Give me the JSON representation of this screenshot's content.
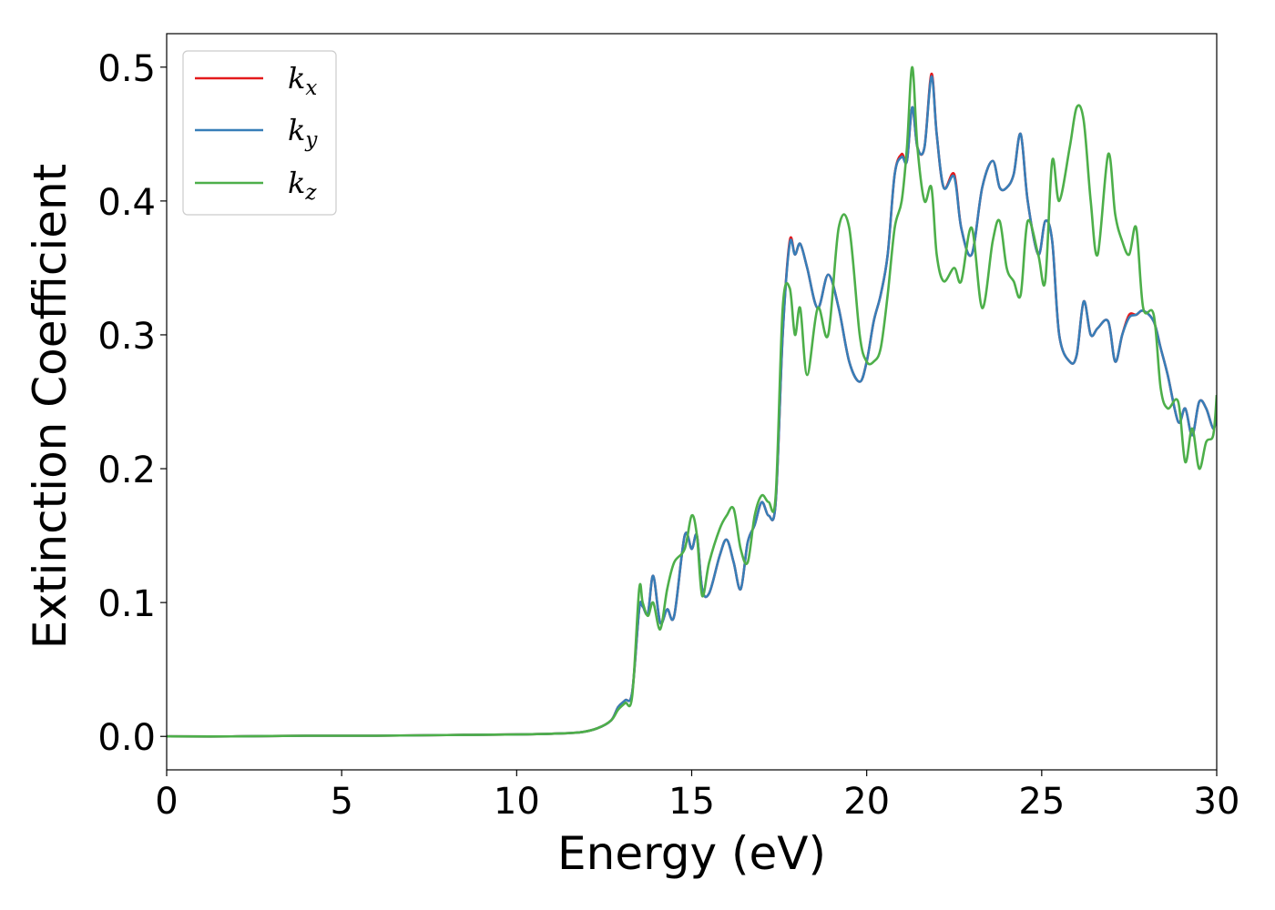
{
  "chart_data": {
    "type": "line",
    "xlabel": "Energy (eV)",
    "ylabel": "Extinction Coefficient",
    "xlim": [
      0,
      30
    ],
    "ylim": [
      -0.025,
      0.525
    ],
    "xticks": [
      0,
      5,
      10,
      15,
      20,
      25,
      30
    ],
    "xtick_labels": [
      "0",
      "5",
      "10",
      "15",
      "20",
      "25",
      "30"
    ],
    "yticks": [
      0.0,
      0.1,
      0.2,
      0.3,
      0.4,
      0.5
    ],
    "ytick_labels": [
      "0.0",
      "0.1",
      "0.2",
      "0.3",
      "0.4",
      "0.5"
    ],
    "grid": false,
    "legend_position": "top-left",
    "series": [
      {
        "name": "k_x",
        "label_base": "k",
        "label_sub": "x",
        "color": "#e41a1c",
        "x": [
          0,
          2,
          4,
          6,
          8,
          10,
          11,
          11.8,
          12.3,
          12.7,
          12.9,
          13.1,
          13.3,
          13.5,
          13.6,
          13.75,
          13.9,
          14.1,
          14.3,
          14.5,
          14.8,
          15.0,
          15.15,
          15.3,
          15.5,
          15.8,
          16.0,
          16.2,
          16.4,
          16.6,
          16.8,
          17.0,
          17.2,
          17.4,
          17.6,
          17.8,
          17.95,
          18.1,
          18.3,
          18.6,
          18.9,
          19.2,
          19.5,
          19.8,
          20.0,
          20.2,
          20.4,
          20.6,
          20.8,
          21.0,
          21.15,
          21.3,
          21.45,
          21.65,
          21.85,
          22.0,
          22.2,
          22.5,
          22.7,
          23.0,
          23.3,
          23.6,
          23.8,
          24.0,
          24.2,
          24.4,
          24.6,
          24.9,
          25.1,
          25.3,
          25.5,
          25.8,
          26.0,
          26.2,
          26.4,
          26.6,
          26.9,
          27.1,
          27.3,
          27.5,
          27.7,
          27.9,
          28.2,
          28.4,
          28.6,
          28.9,
          29.1,
          29.3,
          29.5,
          29.7,
          29.9,
          30
        ],
        "y": [
          0.0,
          0.0,
          0.0005,
          0.0005,
          0.001,
          0.0015,
          0.002,
          0.003,
          0.006,
          0.012,
          0.022,
          0.027,
          0.033,
          0.095,
          0.097,
          0.092,
          0.12,
          0.085,
          0.095,
          0.09,
          0.15,
          0.14,
          0.15,
          0.11,
          0.107,
          0.135,
          0.147,
          0.13,
          0.11,
          0.145,
          0.158,
          0.175,
          0.165,
          0.175,
          0.3,
          0.37,
          0.36,
          0.368,
          0.35,
          0.32,
          0.345,
          0.32,
          0.28,
          0.265,
          0.28,
          0.31,
          0.33,
          0.36,
          0.42,
          0.435,
          0.43,
          0.47,
          0.44,
          0.44,
          0.495,
          0.45,
          0.41,
          0.42,
          0.38,
          0.36,
          0.41,
          0.43,
          0.41,
          0.41,
          0.42,
          0.45,
          0.4,
          0.36,
          0.385,
          0.37,
          0.3,
          0.28,
          0.285,
          0.325,
          0.3,
          0.305,
          0.31,
          0.28,
          0.3,
          0.315,
          0.315,
          0.318,
          0.31,
          0.29,
          0.27,
          0.235,
          0.245,
          0.225,
          0.25,
          0.245,
          0.23,
          0.24
        ]
      },
      {
        "name": "k_y",
        "label_base": "k",
        "label_sub": "y",
        "color": "#377eb8",
        "x": [
          0,
          2,
          4,
          6,
          8,
          10,
          11,
          11.8,
          12.3,
          12.7,
          12.9,
          13.1,
          13.3,
          13.5,
          13.6,
          13.75,
          13.9,
          14.1,
          14.3,
          14.5,
          14.8,
          15.0,
          15.15,
          15.3,
          15.5,
          15.8,
          16.0,
          16.2,
          16.4,
          16.6,
          16.8,
          17.0,
          17.2,
          17.4,
          17.6,
          17.8,
          17.95,
          18.1,
          18.3,
          18.6,
          18.9,
          19.2,
          19.5,
          19.8,
          20.0,
          20.2,
          20.4,
          20.6,
          20.8,
          21.0,
          21.15,
          21.3,
          21.45,
          21.65,
          21.85,
          22.0,
          22.2,
          22.5,
          22.7,
          23.0,
          23.3,
          23.6,
          23.8,
          24.0,
          24.2,
          24.4,
          24.6,
          24.9,
          25.1,
          25.3,
          25.5,
          25.8,
          26.0,
          26.2,
          26.4,
          26.6,
          26.9,
          27.1,
          27.3,
          27.5,
          27.7,
          27.9,
          28.2,
          28.4,
          28.6,
          28.9,
          29.1,
          29.3,
          29.5,
          29.7,
          29.9,
          30
        ],
        "y": [
          0.0,
          0.0,
          0.0005,
          0.0005,
          0.001,
          0.0015,
          0.002,
          0.003,
          0.006,
          0.012,
          0.022,
          0.027,
          0.033,
          0.095,
          0.097,
          0.092,
          0.12,
          0.085,
          0.095,
          0.09,
          0.15,
          0.14,
          0.15,
          0.11,
          0.107,
          0.135,
          0.147,
          0.13,
          0.11,
          0.145,
          0.158,
          0.175,
          0.165,
          0.175,
          0.3,
          0.368,
          0.36,
          0.368,
          0.35,
          0.32,
          0.345,
          0.32,
          0.28,
          0.265,
          0.28,
          0.31,
          0.33,
          0.36,
          0.42,
          0.433,
          0.43,
          0.47,
          0.44,
          0.44,
          0.493,
          0.45,
          0.41,
          0.418,
          0.38,
          0.36,
          0.41,
          0.43,
          0.41,
          0.41,
          0.42,
          0.45,
          0.4,
          0.36,
          0.385,
          0.37,
          0.3,
          0.28,
          0.285,
          0.325,
          0.3,
          0.305,
          0.31,
          0.28,
          0.3,
          0.313,
          0.315,
          0.318,
          0.31,
          0.29,
          0.27,
          0.235,
          0.245,
          0.225,
          0.25,
          0.245,
          0.23,
          0.24
        ]
      },
      {
        "name": "k_z",
        "label_base": "k",
        "label_sub": "z",
        "color": "#4daf4a",
        "x": [
          0,
          2,
          4,
          6,
          8,
          10,
          11,
          11.8,
          12.3,
          12.7,
          12.9,
          13.1,
          13.3,
          13.5,
          13.6,
          13.75,
          13.9,
          14.1,
          14.3,
          14.5,
          14.8,
          15.0,
          15.15,
          15.3,
          15.5,
          15.8,
          16.0,
          16.2,
          16.4,
          16.6,
          16.8,
          17.0,
          17.2,
          17.4,
          17.6,
          17.8,
          17.95,
          18.1,
          18.3,
          18.6,
          18.9,
          19.2,
          19.5,
          19.8,
          20.0,
          20.2,
          20.4,
          20.6,
          20.8,
          21.0,
          21.15,
          21.3,
          21.45,
          21.65,
          21.85,
          22.0,
          22.2,
          22.5,
          22.7,
          23.0,
          23.3,
          23.6,
          23.8,
          24.0,
          24.2,
          24.4,
          24.6,
          24.9,
          25.1,
          25.3,
          25.5,
          25.8,
          26.0,
          26.2,
          26.4,
          26.6,
          26.9,
          27.1,
          27.3,
          27.5,
          27.7,
          27.9,
          28.2,
          28.4,
          28.6,
          28.9,
          29.1,
          29.3,
          29.5,
          29.7,
          29.9,
          30
        ],
        "y": [
          0.0,
          0.0,
          0.0005,
          0.0005,
          0.001,
          0.0015,
          0.002,
          0.003,
          0.006,
          0.012,
          0.02,
          0.025,
          0.03,
          0.11,
          0.1,
          0.09,
          0.1,
          0.08,
          0.11,
          0.13,
          0.14,
          0.165,
          0.15,
          0.105,
          0.13,
          0.155,
          0.165,
          0.17,
          0.14,
          0.13,
          0.165,
          0.18,
          0.175,
          0.18,
          0.32,
          0.335,
          0.3,
          0.32,
          0.27,
          0.32,
          0.3,
          0.38,
          0.38,
          0.3,
          0.28,
          0.28,
          0.29,
          0.33,
          0.38,
          0.4,
          0.44,
          0.5,
          0.44,
          0.4,
          0.41,
          0.36,
          0.34,
          0.35,
          0.34,
          0.38,
          0.32,
          0.37,
          0.385,
          0.35,
          0.34,
          0.33,
          0.385,
          0.36,
          0.34,
          0.43,
          0.4,
          0.44,
          0.47,
          0.46,
          0.4,
          0.36,
          0.435,
          0.39,
          0.37,
          0.36,
          0.38,
          0.32,
          0.315,
          0.26,
          0.245,
          0.25,
          0.205,
          0.23,
          0.2,
          0.22,
          0.225,
          0.255
        ]
      }
    ]
  }
}
